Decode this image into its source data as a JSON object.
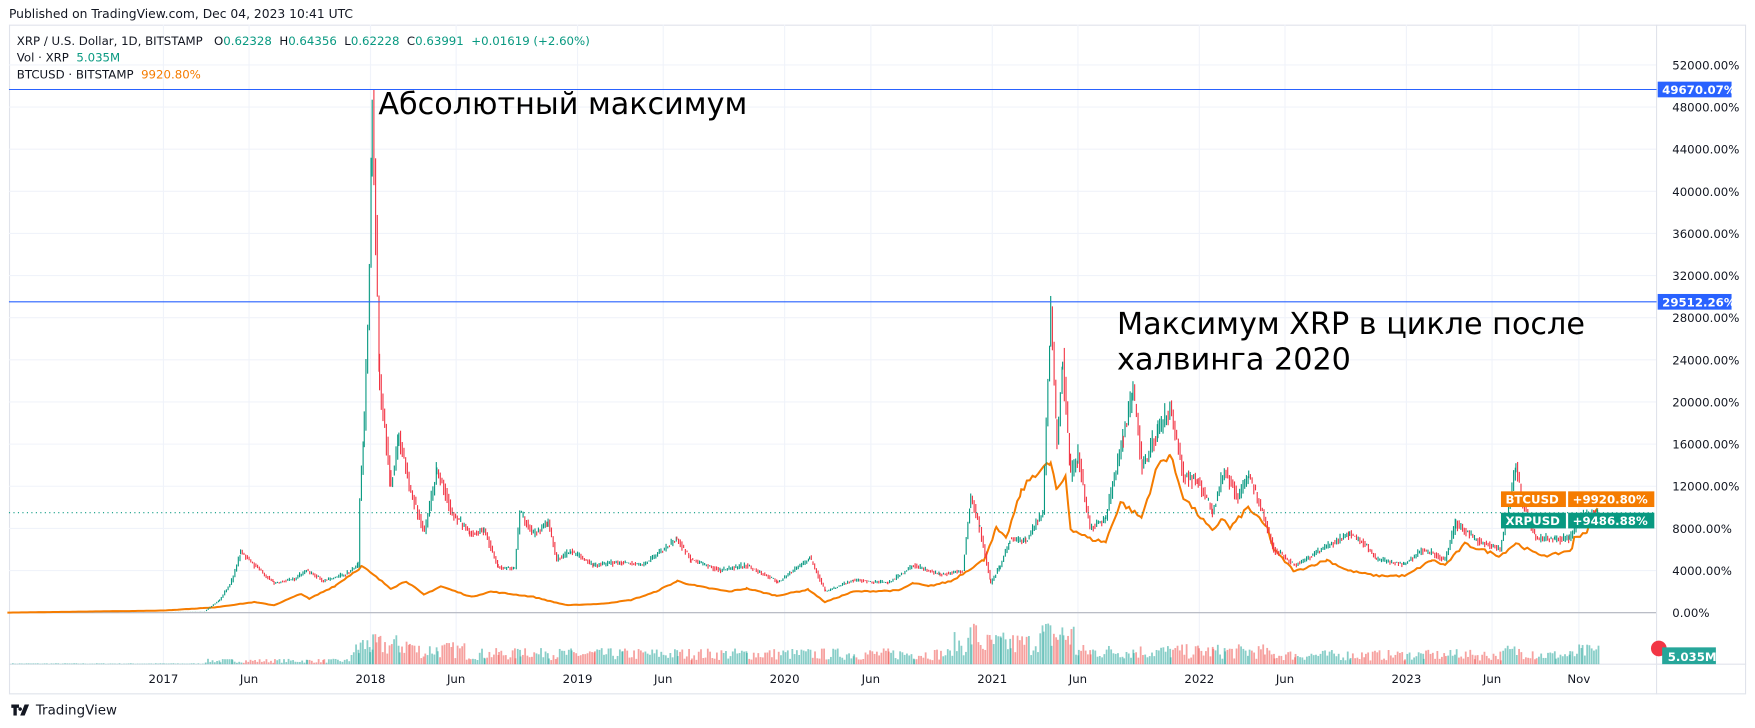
{
  "published": "Published on TradingView.com, Dec 04, 2023 10:41 UTC",
  "legend": {
    "symbol": "XRP / U.S. Dollar, 1D, BITSTAMP",
    "ohlc": [
      {
        "k": "O",
        "v": "0.62328"
      },
      {
        "k": "H",
        "v": "0.64356"
      },
      {
        "k": "L",
        "v": "0.62228"
      },
      {
        "k": "C",
        "v": "0.63991"
      }
    ],
    "change": "+0.01619 (+2.60%)",
    "vol_label": "Vol · XRP",
    "vol_value": "5.035M",
    "compare_label": "BTCUSD · BITSTAMP",
    "compare_value": "9920.80%"
  },
  "annotations": {
    "ath": "Абсолютный максимум",
    "cycle_line1": "Максимум XRP в цикле после",
    "cycle_line2": "халвинга 2020"
  },
  "brand": "TradingView",
  "colors": {
    "up": "#089981",
    "down": "#f23645",
    "btc": "#f57c00",
    "hline": "#2962ff",
    "volume_up": "#26a69a",
    "volume_down": "#ef5350"
  },
  "chart_data": {
    "type": "line",
    "title": "",
    "y_unit": "%",
    "ylim": [
      0,
      52000
    ],
    "y_ticks": [
      "52000.00%",
      "48000.00%",
      "44000.00%",
      "40000.00%",
      "36000.00%",
      "32000.00%",
      "28000.00%",
      "24000.00%",
      "20000.00%",
      "16000.00%",
      "12000.00%",
      "8000.00%",
      "4000.00%",
      "0.00%"
    ],
    "y_tick_values": [
      52000,
      48000,
      44000,
      40000,
      36000,
      32000,
      28000,
      24000,
      20000,
      16000,
      12000,
      8000,
      4000,
      0
    ],
    "x_ticks": [
      {
        "label": "2017",
        "date": "2017-01-01"
      },
      {
        "label": "Jun",
        "date": "2017-06-01"
      },
      {
        "label": "2018",
        "date": "2018-01-01"
      },
      {
        "label": "Jun",
        "date": "2018-06-01"
      },
      {
        "label": "2019",
        "date": "2019-01-01"
      },
      {
        "label": "Jun",
        "date": "2019-06-01"
      },
      {
        "label": "2020",
        "date": "2020-01-01"
      },
      {
        "label": "Jun",
        "date": "2020-06-01"
      },
      {
        "label": "2021",
        "date": "2021-01-01"
      },
      {
        "label": "Jun",
        "date": "2021-06-01"
      },
      {
        "label": "2022",
        "date": "2022-01-01"
      },
      {
        "label": "Jun",
        "date": "2022-06-01"
      },
      {
        "label": "2023",
        "date": "2023-01-01"
      },
      {
        "label": "Jun",
        "date": "2023-06-01"
      },
      {
        "label": "Nov",
        "date": "2023-11-01"
      }
    ],
    "horizontal_lines": [
      {
        "value": 49670.07,
        "label": "49670.07%"
      },
      {
        "value": 29512.26,
        "label": "29512.26%"
      }
    ],
    "last_price_line": {
      "value": 9486.88
    },
    "price_labels": [
      {
        "name": "BTCUSD",
        "label": "+9920.80%",
        "value": 9920.8
      },
      {
        "name": "XRPUSD",
        "label": "+9486.88%",
        "value": 9486.88
      }
    ],
    "volume_label": "5.035M",
    "series": [
      {
        "name": "XRPUSD",
        "style": "candles",
        "points": [
          [
            "2016-04-01",
            0
          ],
          [
            "2017-01-01",
            30
          ],
          [
            "2017-03-15",
            150
          ],
          [
            "2017-04-10",
            1200
          ],
          [
            "2017-05-01",
            3000
          ],
          [
            "2017-05-17",
            5800
          ],
          [
            "2017-06-10",
            4500
          ],
          [
            "2017-07-15",
            2800
          ],
          [
            "2017-08-20",
            3200
          ],
          [
            "2017-09-10",
            4000
          ],
          [
            "2017-10-10",
            3000
          ],
          [
            "2017-11-15",
            3600
          ],
          [
            "2017-12-10",
            4500
          ],
          [
            "2017-12-13",
            11000
          ],
          [
            "2017-12-21",
            18000
          ],
          [
            "2017-12-30",
            33000
          ],
          [
            "2018-01-04",
            49670
          ],
          [
            "2018-01-10",
            36000
          ],
          [
            "2018-01-17",
            22000
          ],
          [
            "2018-02-06",
            12000
          ],
          [
            "2018-02-20",
            17000
          ],
          [
            "2018-03-10",
            12000
          ],
          [
            "2018-04-06",
            7500
          ],
          [
            "2018-04-28",
            13500
          ],
          [
            "2018-05-25",
            9500
          ],
          [
            "2018-06-25",
            7500
          ],
          [
            "2018-07-20",
            7800
          ],
          [
            "2018-08-14",
            4300
          ],
          [
            "2018-09-12",
            4200
          ],
          [
            "2018-09-21",
            9500
          ],
          [
            "2018-10-15",
            7500
          ],
          [
            "2018-11-10",
            8500
          ],
          [
            "2018-11-25",
            5000
          ],
          [
            "2018-12-20",
            5800
          ],
          [
            "2019-01-30",
            4500
          ],
          [
            "2019-03-20",
            4800
          ],
          [
            "2019-04-25",
            4500
          ],
          [
            "2019-06-25",
            7000
          ],
          [
            "2019-07-20",
            5000
          ],
          [
            "2019-09-10",
            4000
          ],
          [
            "2019-10-25",
            4500
          ],
          [
            "2019-12-20",
            2900
          ],
          [
            "2020-02-14",
            5200
          ],
          [
            "2020-03-13",
            2000
          ],
          [
            "2020-05-01",
            3100
          ],
          [
            "2020-07-01",
            2800
          ],
          [
            "2020-08-15",
            4500
          ],
          [
            "2020-10-01",
            3600
          ],
          [
            "2020-11-10",
            4000
          ],
          [
            "2020-11-24",
            11000
          ],
          [
            "2020-12-10",
            8000
          ],
          [
            "2020-12-29",
            2800
          ],
          [
            "2021-01-15",
            4500
          ],
          [
            "2021-02-01",
            7000
          ],
          [
            "2021-03-01",
            6800
          ],
          [
            "2021-03-31",
            9500
          ],
          [
            "2021-04-14",
            29000
          ],
          [
            "2021-04-25",
            16000
          ],
          [
            "2021-05-05",
            24000
          ],
          [
            "2021-05-19",
            13000
          ],
          [
            "2021-06-01",
            15000
          ],
          [
            "2021-06-22",
            8000
          ],
          [
            "2021-07-20",
            9000
          ],
          [
            "2021-08-20",
            17000
          ],
          [
            "2021-09-06",
            21000
          ],
          [
            "2021-09-22",
            14000
          ],
          [
            "2021-10-20",
            17000
          ],
          [
            "2021-11-10",
            19500
          ],
          [
            "2021-12-04",
            13000
          ],
          [
            "2021-12-30",
            12500
          ],
          [
            "2022-01-24",
            9500
          ],
          [
            "2022-02-14",
            13500
          ],
          [
            "2022-03-10",
            11000
          ],
          [
            "2022-03-29",
            13000
          ],
          [
            "2022-04-25",
            9000
          ],
          [
            "2022-05-12",
            6000
          ],
          [
            "2022-06-18",
            4500
          ],
          [
            "2022-07-20",
            5500
          ],
          [
            "2022-09-23",
            7500
          ],
          [
            "2022-10-20",
            6500
          ],
          [
            "2022-11-09",
            5000
          ],
          [
            "2022-12-28",
            4600
          ],
          [
            "2023-01-30",
            6000
          ],
          [
            "2023-03-10",
            5000
          ],
          [
            "2023-03-29",
            8500
          ],
          [
            "2023-05-01",
            7000
          ],
          [
            "2023-06-15",
            6000
          ],
          [
            "2023-07-13",
            13800
          ],
          [
            "2023-07-25",
            10500
          ],
          [
            "2023-08-17",
            7000
          ],
          [
            "2023-09-20",
            7000
          ],
          [
            "2023-10-15",
            7000
          ],
          [
            "2023-11-06",
            9000
          ],
          [
            "2023-12-04",
            9486.88
          ]
        ]
      },
      {
        "name": "BTCUSD",
        "style": "line",
        "points": [
          [
            "2016-04-01",
            0
          ],
          [
            "2017-01-01",
            200
          ],
          [
            "2017-04-01",
            500
          ],
          [
            "2017-06-10",
            1000
          ],
          [
            "2017-07-15",
            700
          ],
          [
            "2017-09-01",
            1800
          ],
          [
            "2017-09-15",
            1300
          ],
          [
            "2017-11-01",
            2600
          ],
          [
            "2017-12-17",
            4400
          ],
          [
            "2018-02-06",
            2300
          ],
          [
            "2018-03-05",
            3000
          ],
          [
            "2018-04-05",
            1700
          ],
          [
            "2018-05-05",
            2500
          ],
          [
            "2018-06-28",
            1500
          ],
          [
            "2018-08-01",
            2000
          ],
          [
            "2018-10-15",
            1500
          ],
          [
            "2018-11-20",
            1000
          ],
          [
            "2018-12-15",
            700
          ],
          [
            "2019-02-15",
            850
          ],
          [
            "2019-04-05",
            1200
          ],
          [
            "2019-05-15",
            1900
          ],
          [
            "2019-06-26",
            3000
          ],
          [
            "2019-08-01",
            2500
          ],
          [
            "2019-09-25",
            2000
          ],
          [
            "2019-10-26",
            2300
          ],
          [
            "2019-12-18",
            1600
          ],
          [
            "2020-02-12",
            2200
          ],
          [
            "2020-03-12",
            1000
          ],
          [
            "2020-05-01",
            2000
          ],
          [
            "2020-07-20",
            2100
          ],
          [
            "2020-08-15",
            2800
          ],
          [
            "2020-09-10",
            2500
          ],
          [
            "2020-10-21",
            3000
          ],
          [
            "2020-11-24",
            4200
          ],
          [
            "2020-12-17",
            5000
          ],
          [
            "2021-01-08",
            8000
          ],
          [
            "2021-01-25",
            7000
          ],
          [
            "2021-02-21",
            11500
          ],
          [
            "2021-03-13",
            13000
          ],
          [
            "2021-04-14",
            14200
          ],
          [
            "2021-04-25",
            11500
          ],
          [
            "2021-05-10",
            13000
          ],
          [
            "2021-05-19",
            8000
          ],
          [
            "2021-06-22",
            7000
          ],
          [
            "2021-07-20",
            6700
          ],
          [
            "2021-08-15",
            10500
          ],
          [
            "2021-09-21",
            9000
          ],
          [
            "2021-10-20",
            14000
          ],
          [
            "2021-11-10",
            15000
          ],
          [
            "2021-12-04",
            11000
          ],
          [
            "2022-01-24",
            7700
          ],
          [
            "2022-02-10",
            9000
          ],
          [
            "2022-02-24",
            8000
          ],
          [
            "2022-03-28",
            10000
          ],
          [
            "2022-05-01",
            8000
          ],
          [
            "2022-05-12",
            6000
          ],
          [
            "2022-06-18",
            3900
          ],
          [
            "2022-08-14",
            5000
          ],
          [
            "2022-09-20",
            4000
          ],
          [
            "2022-11-09",
            3500
          ],
          [
            "2022-12-31",
            3500
          ],
          [
            "2023-02-15",
            5000
          ],
          [
            "2023-03-10",
            4500
          ],
          [
            "2023-04-14",
            6500
          ],
          [
            "2023-06-15",
            5400
          ],
          [
            "2023-07-13",
            6600
          ],
          [
            "2023-08-17",
            5600
          ],
          [
            "2023-09-11",
            5400
          ],
          [
            "2023-10-20",
            6000
          ],
          [
            "2023-10-24",
            7100
          ],
          [
            "2023-11-15",
            7700
          ],
          [
            "2023-12-04",
            9920.8
          ]
        ]
      }
    ]
  }
}
